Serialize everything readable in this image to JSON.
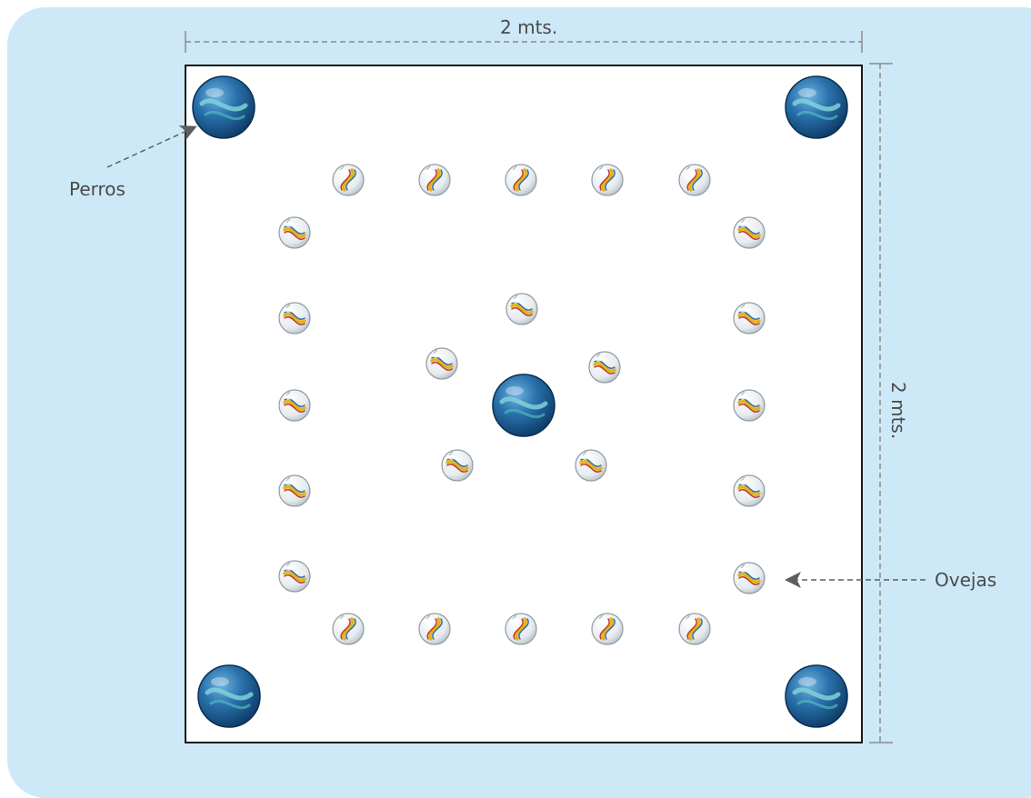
{
  "diagram": {
    "width_label": "2 mts.",
    "height_label": "2 mts.",
    "dogs_label": "Perros",
    "sheep_label": "Ovejas"
  },
  "colors": {
    "background_panel": "#cde9f8",
    "board": "#ffffff",
    "board_border": "#1a1a1a",
    "dimension_line": "#8a8a8a",
    "arrow": "#5e5e5e",
    "dog_marble": "#1f5f94",
    "sheep_marble": "#eef2f5",
    "sheep_swirl": [
      "#e5b21d",
      "#c0392b",
      "#2e6ea8"
    ]
  },
  "icons": {
    "dog": "large-blue-marble-icon",
    "sheep": "clear-swirl-marble-icon"
  }
}
